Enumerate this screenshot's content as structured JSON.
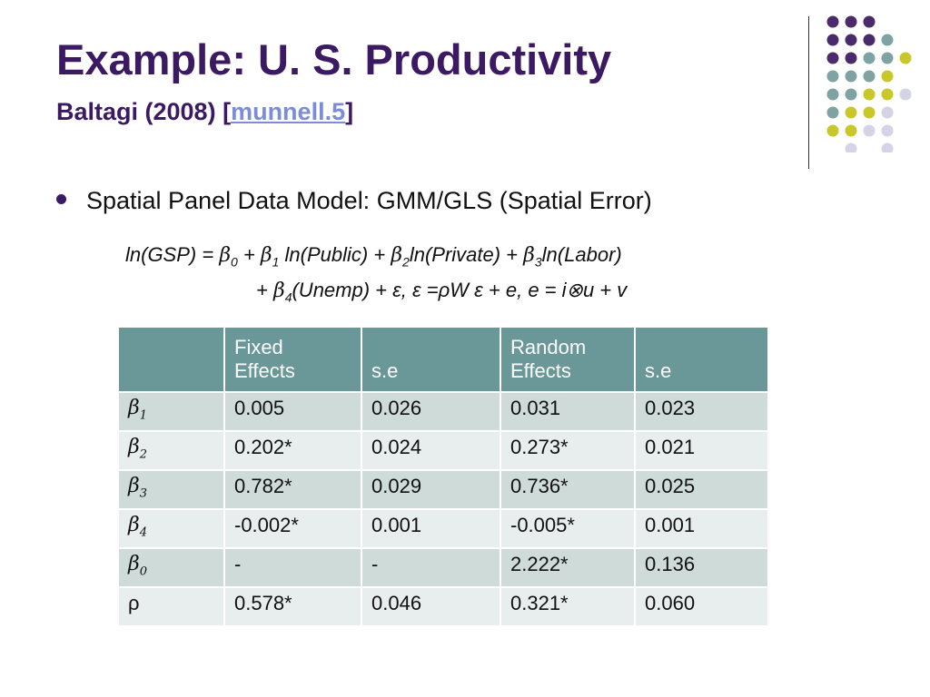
{
  "slide": {
    "title": "Example: U. S. Productivity",
    "subtitle_prefix": "Baltagi (2008) [",
    "subtitle_link": "munnell.5",
    "subtitle_suffix": "]",
    "bullet": "Spatial Panel Data Model: GMM/GLS (Spatial Error)",
    "equation_line1": {
      "a": "ln(GSP) = ",
      "b0": "β",
      "b0_sub": "0",
      "b": " + ",
      "b1": "β",
      "b1_sub": "1",
      "c": " ln(Public) + ",
      "b2": "β",
      "b2_sub": "2",
      "d": "ln(Private) + ",
      "b3": "β",
      "b3_sub": "3",
      "e": "ln(Labor)"
    },
    "equation_line2": {
      "a": "+ ",
      "b4": "β",
      "b4_sub": "4",
      "b": "(Unemp) + ε, ε =ρW ε + e, e = i⊗u + v"
    }
  },
  "colors": {
    "title": "#3b1a63",
    "link": "#7b8cd8",
    "table_header": "#6a9798",
    "row_dark": "#cfdbd9",
    "row_light": "#e8eeed",
    "dot_purple": "#4b2a6b",
    "dot_teal": "#7fa3a2",
    "dot_yellow": "#c9c82a",
    "dot_lavender": "#d5d3e6"
  },
  "table": {
    "headers": [
      {
        "line1": "",
        "line2": ""
      },
      {
        "line1": "Fixed",
        "line2": "Effects"
      },
      {
        "line1": "",
        "line2": "s.e"
      },
      {
        "line1": "Random",
        "line2": "Effects"
      },
      {
        "line1": "",
        "line2": "s.e"
      }
    ],
    "rows": [
      {
        "sym": "β",
        "sub": "1",
        "fe": "0.005",
        "fe_se": "0.026",
        "re": "0.031",
        "re_se": "0.023"
      },
      {
        "sym": "β",
        "sub": "2",
        "fe": "0.202*",
        "fe_se": "0.024",
        "re": "0.273*",
        "re_se": "0.021"
      },
      {
        "sym": "β",
        "sub": "3",
        "fe": "0.782*",
        "fe_se": "0.029",
        "re": "0.736*",
        "re_se": "0.025"
      },
      {
        "sym": "β",
        "sub": "4",
        "fe": "-0.002*",
        "fe_se": "0.001",
        "re": "-0.005*",
        "re_se": "0.001"
      },
      {
        "sym": "β",
        "sub": "0",
        "fe": "-",
        "fe_se": "-",
        "re": "2.222*",
        "re_se": "0.136"
      },
      {
        "sym": "ρ",
        "sub": "",
        "fe": "0.578*",
        "fe_se": "0.046",
        "re": "0.321*",
        "re_se": "0.060"
      }
    ]
  }
}
